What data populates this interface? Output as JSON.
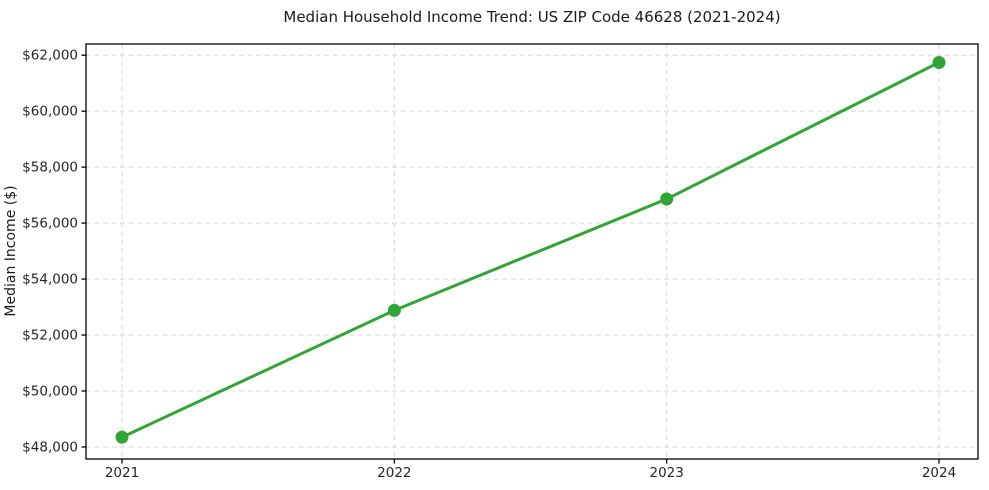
{
  "chart_data": {
    "type": "line",
    "title": "Median Household Income Trend: US ZIP Code 46628 (2021-2024)",
    "xlabel": "",
    "ylabel": "Median Income ($)",
    "categories": [
      "2021",
      "2022",
      "2023",
      "2024"
    ],
    "x": [
      2021,
      2022,
      2023,
      2024
    ],
    "values": [
      48350,
      52880,
      56860,
      61740
    ],
    "value_labels": [
      "$48,350",
      "$52,880",
      "$56,860",
      "$61,740"
    ],
    "ylim": [
      47570,
      62400
    ],
    "yticks": [
      48000,
      50000,
      52000,
      54000,
      56000,
      58000,
      60000,
      62000
    ],
    "ytick_labels": [
      "$48,000",
      "$50,000",
      "$52,000",
      "$54,000",
      "$56,000",
      "$58,000",
      "$60,000",
      "$62,000"
    ],
    "grid": true,
    "grid_style": "dashed",
    "legend": "none",
    "colors": {
      "line": "#30a535",
      "marker": "#30a535",
      "grid": "#d8d8d8",
      "border": "#000000",
      "text": "#262626",
      "background": "#ffffff"
    }
  }
}
